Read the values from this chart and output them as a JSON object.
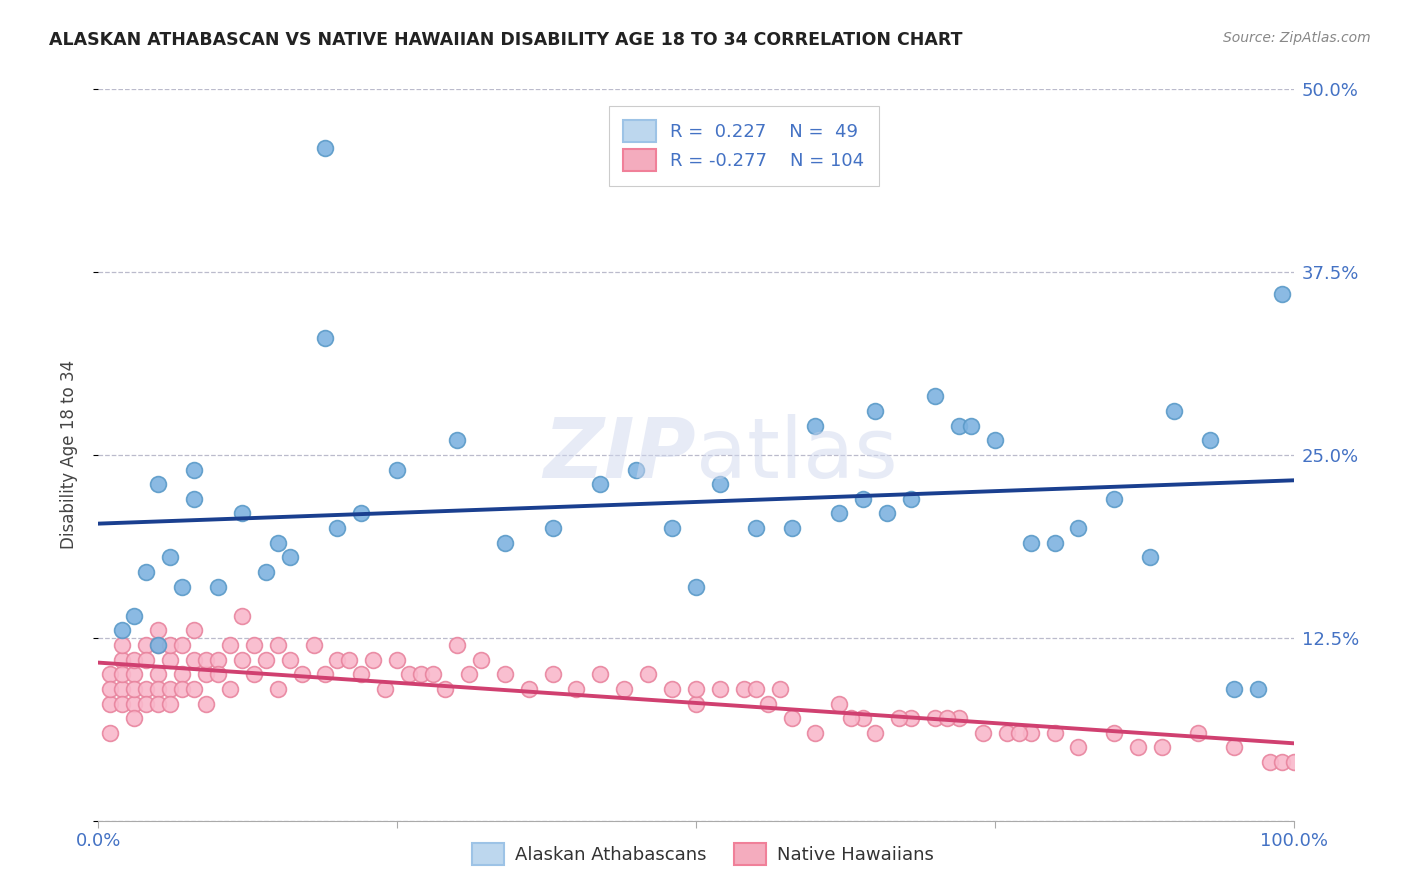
{
  "title": "ALASKAN ATHABASCAN VS NATIVE HAWAIIAN DISABILITY AGE 18 TO 34 CORRELATION CHART",
  "source": "Source: ZipAtlas.com",
  "ylabel": "Disability Age 18 to 34",
  "xlim": [
    0,
    100
  ],
  "ylim": [
    0,
    50
  ],
  "yticks": [
    0,
    12.5,
    25.0,
    37.5,
    50.0
  ],
  "ytick_labels": [
    "",
    "12.5%",
    "25.0%",
    "37.5%",
    "50.0%"
  ],
  "blue_R": 0.227,
  "blue_N": 49,
  "pink_R": -0.277,
  "pink_N": 104,
  "blue_scatter_color": "#7EB3E0",
  "blue_scatter_edge": "#5A9AC8",
  "pink_scatter_color": "#F9B8CB",
  "pink_scatter_edge": "#E8849E",
  "trend_blue": "#1A3F8F",
  "trend_pink": "#D04070",
  "legend_fill_blue": "#BDD7EE",
  "legend_fill_pink": "#F4ACBE",
  "legend_edge_blue": "#9DC3E6",
  "legend_edge_pink": "#F08099",
  "watermark_color": "#D0D8EE",
  "watermark_alpha": 0.5,
  "legend_label_blue": "Alaskan Athabascans",
  "legend_label_pink": "Native Hawaiians",
  "grid_color": "#BBBBCC",
  "axis_label_color": "#4472C4",
  "title_color": "#222222",
  "source_color": "#888888",
  "blue_x": [
    19,
    19,
    30,
    5,
    8,
    8,
    12,
    15,
    60,
    65,
    70,
    72,
    75,
    2,
    3,
    4,
    5,
    6,
    7,
    20,
    22,
    34,
    38,
    45,
    50,
    55,
    58,
    62,
    64,
    68,
    73,
    78,
    82,
    85,
    88,
    90,
    93,
    95,
    97,
    10,
    14,
    16,
    25,
    42,
    48,
    52,
    66,
    80,
    99
  ],
  "blue_y": [
    46,
    33,
    26,
    23,
    24,
    22,
    21,
    19,
    27,
    28,
    29,
    27,
    26,
    13,
    14,
    17,
    12,
    18,
    16,
    20,
    21,
    19,
    20,
    24,
    16,
    20,
    20,
    21,
    22,
    22,
    27,
    19,
    20,
    22,
    18,
    28,
    26,
    9,
    9,
    16,
    17,
    18,
    24,
    23,
    20,
    23,
    21,
    19,
    36
  ],
  "pink_x": [
    1,
    1,
    1,
    1,
    2,
    2,
    2,
    2,
    2,
    3,
    3,
    3,
    3,
    3,
    4,
    4,
    4,
    4,
    5,
    5,
    5,
    5,
    5,
    6,
    6,
    6,
    6,
    7,
    7,
    7,
    8,
    8,
    8,
    9,
    9,
    9,
    10,
    10,
    11,
    11,
    12,
    12,
    13,
    13,
    14,
    15,
    15,
    16,
    17,
    18,
    19,
    20,
    21,
    22,
    23,
    24,
    25,
    26,
    27,
    28,
    29,
    30,
    31,
    32,
    34,
    36,
    38,
    40,
    42,
    44,
    46,
    48,
    50,
    52,
    54,
    56,
    58,
    60,
    62,
    64,
    65,
    68,
    70,
    72,
    74,
    76,
    78,
    80,
    82,
    85,
    87,
    89,
    92,
    95,
    98,
    99,
    100,
    50,
    55,
    57,
    63,
    67,
    71,
    77
  ],
  "pink_y": [
    8,
    10,
    6,
    9,
    11,
    9,
    12,
    8,
    10,
    10,
    8,
    11,
    9,
    7,
    12,
    9,
    11,
    8,
    10,
    12,
    9,
    13,
    8,
    11,
    9,
    12,
    8,
    10,
    12,
    9,
    11,
    9,
    13,
    10,
    11,
    8,
    11,
    10,
    12,
    9,
    14,
    11,
    12,
    10,
    11,
    12,
    9,
    11,
    10,
    12,
    10,
    11,
    11,
    10,
    11,
    9,
    11,
    10,
    10,
    10,
    9,
    12,
    10,
    11,
    10,
    9,
    10,
    9,
    10,
    9,
    10,
    9,
    8,
    9,
    9,
    8,
    7,
    6,
    8,
    7,
    6,
    7,
    7,
    7,
    6,
    6,
    6,
    6,
    5,
    6,
    5,
    5,
    6,
    5,
    4,
    4,
    4,
    9,
    9,
    9,
    7,
    7,
    7,
    6
  ]
}
